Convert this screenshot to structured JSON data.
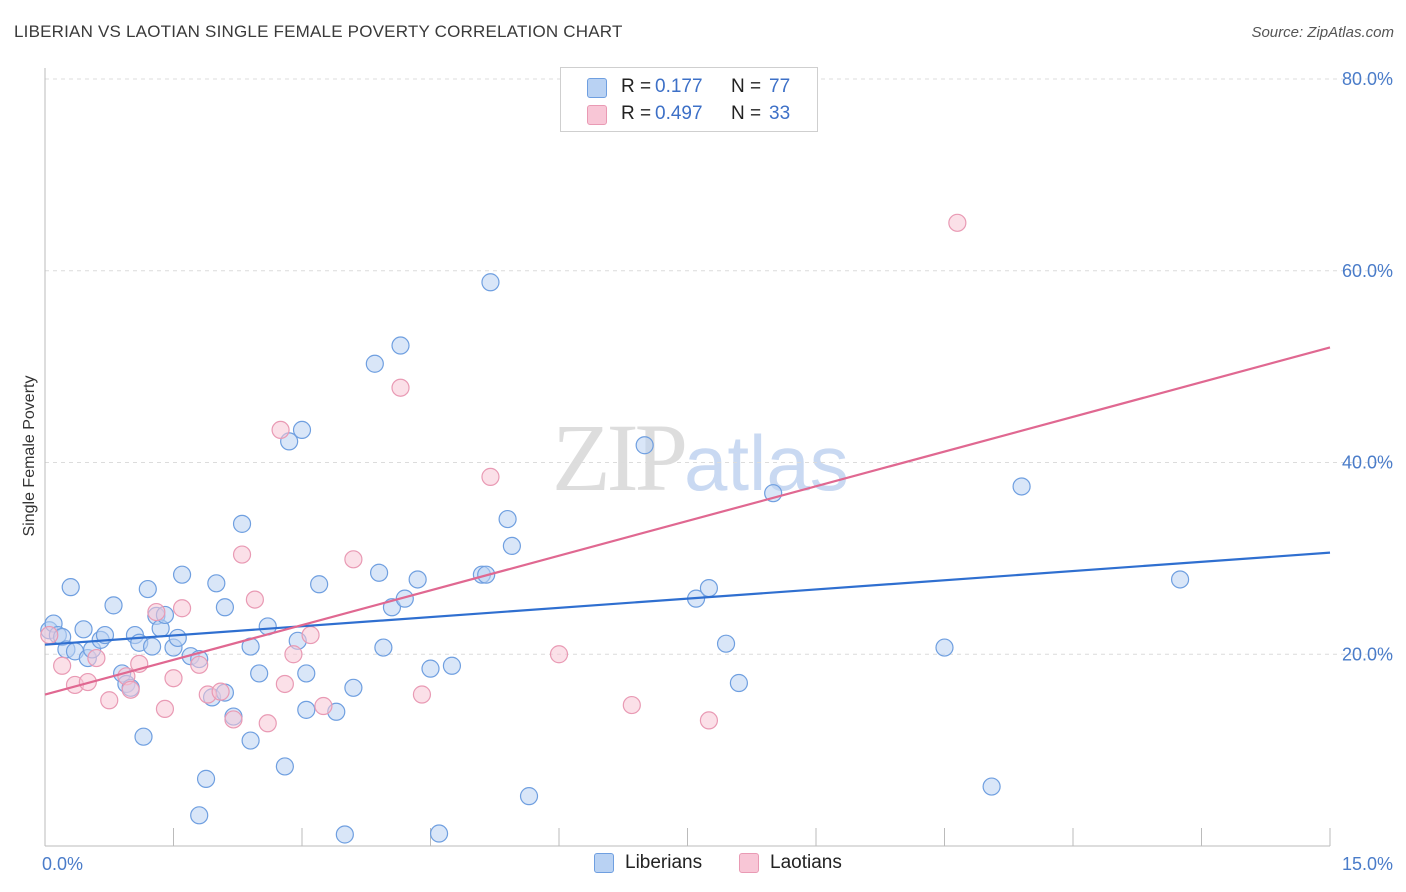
{
  "header": {
    "title": "LIBERIAN VS LAOTIAN SINGLE FEMALE POVERTY CORRELATION CHART",
    "source": "Source: ZipAtlas.com"
  },
  "watermark": {
    "zip": "ZIP",
    "atlas": "atlas"
  },
  "colors": {
    "blue_fill": "#b9d2f3",
    "blue_stroke": "#6f9fe0",
    "blue_line": "#2f6fd0",
    "pink_fill": "#f8c6d6",
    "pink_stroke": "#e99ab4",
    "pink_line": "#e06891",
    "grid": "#dcdcdc",
    "tick_text": "#4a7cc9"
  },
  "legend": {
    "rows": [
      {
        "r_label": "R =",
        "r_value": "0.177",
        "n_label": "N =",
        "n_value": "77"
      },
      {
        "r_label": "R =",
        "r_value": "0.497",
        "n_label": "N =",
        "n_value": "33"
      }
    ]
  },
  "bottom_legend": [
    "Liberians",
    "Laotians"
  ],
  "chart_data": {
    "type": "scatter",
    "title": "LIBERIAN VS LAOTIAN SINGLE FEMALE POVERTY CORRELATION CHART",
    "xlabel": "",
    "ylabel": "Single Female Poverty",
    "xlim": [
      0,
      15
    ],
    "ylim": [
      0,
      80
    ],
    "x_ticks": [
      0,
      1.5,
      3,
      4.5,
      6,
      7.5,
      9,
      10.5,
      12,
      13.5,
      15
    ],
    "x_tick_labels": [
      {
        "value": 0,
        "label": "0.0%"
      },
      {
        "value": 15,
        "label": "15.0%"
      }
    ],
    "y_tick_labels": [
      {
        "value": 20,
        "label": "20.0%"
      },
      {
        "value": 40,
        "label": "40.0%"
      },
      {
        "value": 60,
        "label": "60.0%"
      },
      {
        "value": 80,
        "label": "80.0%"
      }
    ],
    "grid": true,
    "legend_position": "top-center",
    "series": [
      {
        "name": "Liberians",
        "r": 0.177,
        "n": 77,
        "trend": {
          "x": [
            0,
            15
          ],
          "y": [
            21.0,
            30.6
          ]
        },
        "points": [
          [
            0.05,
            22.5
          ],
          [
            0.1,
            23.2
          ],
          [
            0.15,
            22.0
          ],
          [
            0.2,
            21.8
          ],
          [
            0.25,
            20.5
          ],
          [
            0.3,
            27.0
          ],
          [
            0.35,
            20.3
          ],
          [
            0.45,
            22.6
          ],
          [
            0.5,
            19.6
          ],
          [
            0.55,
            20.5
          ],
          [
            0.65,
            21.5
          ],
          [
            0.7,
            22.0
          ],
          [
            0.8,
            25.1
          ],
          [
            0.9,
            18.0
          ],
          [
            0.95,
            16.9
          ],
          [
            1.05,
            22.0
          ],
          [
            1.1,
            21.2
          ],
          [
            1.15,
            11.4
          ],
          [
            1.2,
            26.8
          ],
          [
            1.25,
            20.8
          ],
          [
            1.3,
            24.0
          ],
          [
            1.35,
            22.7
          ],
          [
            1.4,
            24.1
          ],
          [
            1.5,
            20.7
          ],
          [
            1.55,
            21.7
          ],
          [
            1.6,
            28.3
          ],
          [
            1.7,
            19.8
          ],
          [
            1.8,
            19.5
          ],
          [
            1.8,
            3.2
          ],
          [
            1.88,
            7.0
          ],
          [
            1.95,
            15.5
          ],
          [
            2.0,
            27.4
          ],
          [
            2.1,
            24.9
          ],
          [
            2.2,
            13.5
          ],
          [
            2.3,
            33.6
          ],
          [
            2.4,
            11.0
          ],
          [
            2.4,
            20.8
          ],
          [
            2.5,
            18.0
          ],
          [
            2.6,
            22.9
          ],
          [
            2.8,
            8.3
          ],
          [
            2.85,
            42.2
          ],
          [
            2.95,
            21.4
          ],
          [
            3.0,
            43.4
          ],
          [
            3.05,
            18.0
          ],
          [
            3.05,
            14.2
          ],
          [
            3.2,
            27.3
          ],
          [
            3.4,
            14.0
          ],
          [
            3.5,
            1.2
          ],
          [
            3.6,
            16.5
          ],
          [
            3.85,
            50.3
          ],
          [
            3.9,
            28.5
          ],
          [
            3.95,
            20.7
          ],
          [
            4.05,
            24.9
          ],
          [
            4.15,
            52.2
          ],
          [
            4.2,
            25.8
          ],
          [
            4.35,
            27.8
          ],
          [
            4.5,
            18.5
          ],
          [
            4.6,
            1.3
          ],
          [
            4.75,
            18.8
          ],
          [
            5.1,
            28.3
          ],
          [
            5.15,
            28.3
          ],
          [
            5.2,
            58.8
          ],
          [
            5.4,
            34.1
          ],
          [
            5.45,
            31.3
          ],
          [
            5.65,
            5.2
          ],
          [
            7.0,
            41.8
          ],
          [
            7.6,
            25.8
          ],
          [
            7.75,
            26.9
          ],
          [
            7.95,
            21.1
          ],
          [
            8.1,
            17.0
          ],
          [
            8.5,
            36.8
          ],
          [
            10.5,
            20.7
          ],
          [
            11.05,
            6.2
          ],
          [
            11.4,
            37.5
          ],
          [
            13.25,
            27.8
          ],
          [
            1.0,
            16.5
          ],
          [
            2.1,
            16.0
          ]
        ]
      },
      {
        "name": "Laotians",
        "r": 0.497,
        "n": 33,
        "trend": {
          "x": [
            0,
            15
          ],
          "y": [
            15.8,
            52.0
          ]
        },
        "points": [
          [
            0.05,
            22.0
          ],
          [
            0.2,
            18.8
          ],
          [
            0.35,
            16.8
          ],
          [
            0.5,
            17.1
          ],
          [
            0.6,
            19.6
          ],
          [
            0.75,
            15.2
          ],
          [
            0.95,
            17.7
          ],
          [
            1.0,
            16.3
          ],
          [
            1.1,
            19.0
          ],
          [
            1.3,
            24.4
          ],
          [
            1.4,
            14.3
          ],
          [
            1.5,
            17.5
          ],
          [
            1.6,
            24.8
          ],
          [
            1.8,
            18.9
          ],
          [
            1.9,
            15.8
          ],
          [
            2.05,
            16.1
          ],
          [
            2.2,
            13.2
          ],
          [
            2.3,
            30.4
          ],
          [
            2.45,
            25.7
          ],
          [
            2.6,
            12.8
          ],
          [
            2.75,
            43.4
          ],
          [
            2.8,
            16.9
          ],
          [
            2.9,
            20.0
          ],
          [
            3.1,
            22.0
          ],
          [
            3.25,
            14.6
          ],
          [
            3.6,
            29.9
          ],
          [
            4.15,
            47.8
          ],
          [
            4.4,
            15.8
          ],
          [
            5.2,
            38.5
          ],
          [
            6.0,
            20.0
          ],
          [
            6.85,
            14.7
          ],
          [
            7.75,
            13.1
          ],
          [
            10.65,
            65.0
          ]
        ]
      }
    ]
  }
}
